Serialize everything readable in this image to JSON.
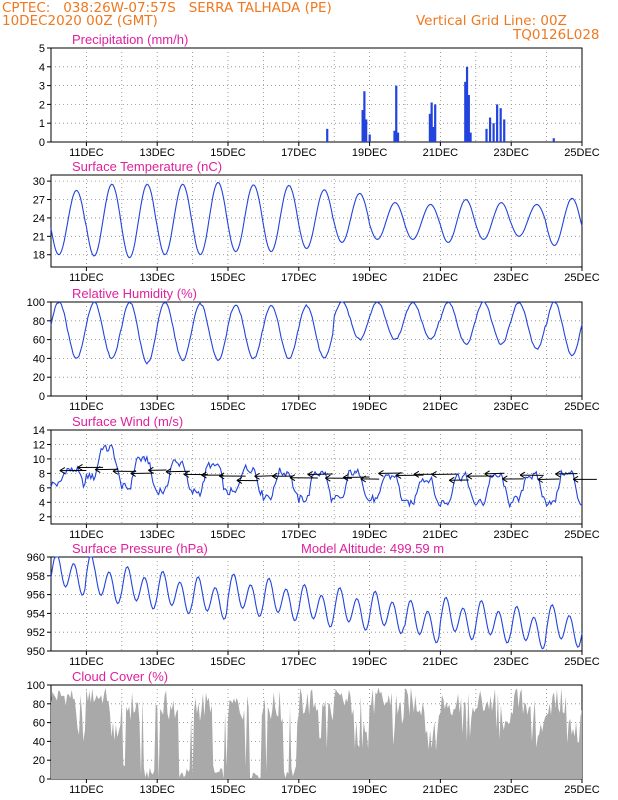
{
  "header": {
    "line1": "CPTEC:   038:26W-07:57S   SERRA TALHADA (PE)",
    "line2": "10DEC2020 00Z (GMT)",
    "grid_note": "Vertical Grid Line: 00Z",
    "code": "TQ0126L028"
  },
  "colors": {
    "header": "#f07820",
    "panel_title": "#e0209f",
    "series": "#2244dd",
    "cloud": "#a9a9a9",
    "arrows": "#000000"
  },
  "x_axis": {
    "start_day": 10,
    "end_day": 25,
    "ticks": [
      "11DEC",
      "13DEC",
      "15DEC",
      "17DEC",
      "19DEC",
      "21DEC",
      "23DEC",
      "25DEC"
    ],
    "tick_days": [
      11,
      13,
      15,
      17,
      19,
      21,
      23,
      25
    ]
  },
  "chart_data": [
    {
      "type": "bar",
      "title": "Precipitation (mm/h)",
      "ylim": [
        0,
        5
      ],
      "yticks": [
        0,
        1,
        2,
        3,
        4,
        5
      ],
      "events": [
        [
          17.8,
          0.7
        ],
        [
          18.8,
          1.7
        ],
        [
          18.85,
          2.7
        ],
        [
          18.9,
          1.2
        ],
        [
          19.0,
          0.4
        ],
        [
          19.7,
          0.6
        ],
        [
          19.75,
          3.0
        ],
        [
          19.8,
          0.5
        ],
        [
          20.7,
          1.5
        ],
        [
          20.75,
          2.1
        ],
        [
          20.8,
          0.8
        ],
        [
          20.85,
          2.0
        ],
        [
          21.7,
          3.2
        ],
        [
          21.75,
          4.0
        ],
        [
          21.8,
          2.5
        ],
        [
          21.85,
          0.5
        ],
        [
          22.3,
          0.7
        ],
        [
          22.4,
          1.3
        ],
        [
          22.5,
          1.0
        ],
        [
          22.6,
          2.0
        ],
        [
          22.7,
          1.8
        ],
        [
          22.8,
          1.2
        ],
        [
          24.2,
          0.2
        ]
      ]
    },
    {
      "type": "line",
      "title": "Surface Temperature (nC)",
      "ylim": [
        16,
        31
      ],
      "yticks": [
        18,
        21,
        24,
        27,
        30
      ],
      "daily_max": [
        28.5,
        29.5,
        29.5,
        29.5,
        29.8,
        29.4,
        29.3,
        28.6,
        28.0,
        26.5,
        26.2,
        27.0,
        26.5,
        26.2,
        27.2,
        28.5
      ],
      "daily_min": [
        18.0,
        17.8,
        17.5,
        18.0,
        18.0,
        18.5,
        18.5,
        19.0,
        20.0,
        20.5,
        20.5,
        20.0,
        20.5,
        21.0,
        19.5,
        18.5
      ]
    },
    {
      "type": "line",
      "title": "Relative Humidity (%)",
      "ylim": [
        0,
        100
      ],
      "yticks": [
        0,
        20,
        40,
        60,
        80,
        100
      ],
      "daily_max": [
        100,
        100,
        100,
        100,
        98,
        97,
        96,
        96,
        100,
        100,
        100,
        100,
        100,
        100,
        100,
        100
      ],
      "daily_min": [
        40,
        40,
        35,
        38,
        38,
        40,
        40,
        40,
        60,
        60,
        60,
        55,
        55,
        50,
        43,
        45
      ]
    },
    {
      "type": "line",
      "title": "Surface Wind (m/s)",
      "ylim": [
        1,
        14
      ],
      "yticks": [
        2,
        4,
        6,
        8,
        10,
        12,
        14
      ],
      "daily_max": [
        9,
        12.5,
        11,
        10.5,
        10,
        9.5,
        9,
        9,
        9,
        8.5,
        8,
        8.5,
        8.5,
        8.5,
        9,
        9
      ],
      "daily_min": [
        6,
        6.5,
        5,
        4.5,
        4.5,
        4.5,
        4,
        3.5,
        3.5,
        3.5,
        3,
        3,
        3,
        3.5,
        3,
        4
      ],
      "arrows_from": "E"
    },
    {
      "type": "line",
      "title": "Surface Pressure (hPa)",
      "annotation": "Model Altitude: 499.59 m",
      "ylim": [
        950,
        960
      ],
      "yticks": [
        950,
        952,
        954,
        956,
        958,
        960
      ],
      "daily_trend_start": 957.5,
      "daily_trend_end": 952.0
    },
    {
      "type": "area",
      "title": "Cloud Cover (%)",
      "ylim": [
        0,
        100
      ],
      "yticks": [
        0,
        20,
        40,
        60,
        80,
        100
      ]
    }
  ]
}
